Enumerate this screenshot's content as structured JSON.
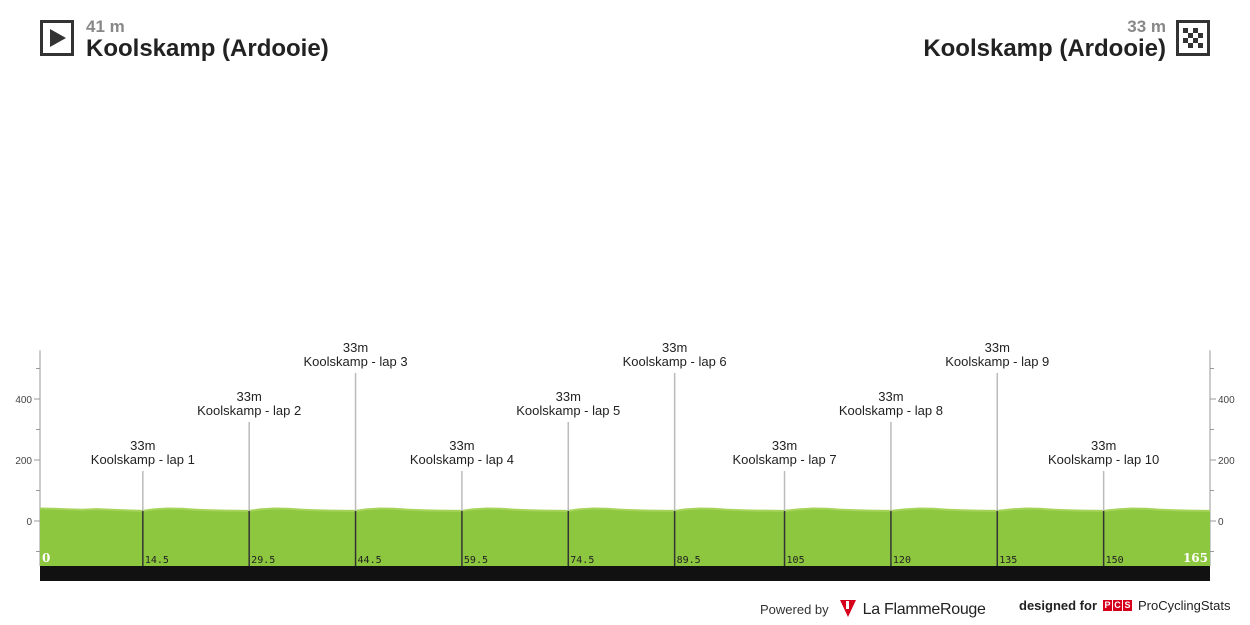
{
  "start": {
    "elevation": "41 m",
    "name": "Koolskamp (Ardooie)",
    "icon": "play-flag-icon"
  },
  "finish": {
    "elevation": "33 m",
    "name": "Koolskamp (Ardooie)",
    "icon": "checkered-flag-icon"
  },
  "chart_data": {
    "type": "area",
    "title": "",
    "xlabel": "",
    "ylabel": "",
    "xlim": [
      0,
      165
    ],
    "ylim": [
      -150,
      560
    ],
    "y_ticks": [
      0,
      200,
      400
    ],
    "x_ticks": [
      "0",
      "14.5",
      "29.5",
      "44.5",
      "59.5",
      "74.5",
      "89.5",
      "105",
      "120",
      "135",
      "150",
      "165"
    ],
    "x_tick_values": [
      0,
      14.5,
      29.5,
      44.5,
      59.5,
      74.5,
      89.5,
      105,
      120,
      135,
      150,
      165
    ],
    "colors": {
      "fill": "#8dc63f",
      "stroke": "#a6d35a",
      "base_bar": "#111111"
    },
    "elevation_profile": {
      "x": [
        0,
        2,
        4,
        6,
        8,
        10,
        12,
        14.5,
        16,
        18,
        20,
        22,
        24,
        26,
        29.5,
        31,
        33,
        35,
        37,
        39,
        41,
        44.5,
        46,
        48,
        50,
        52,
        54,
        56,
        59.5,
        61,
        63,
        65,
        67,
        69,
        71,
        74.5,
        76,
        78,
        80,
        82,
        84,
        86,
        89.5,
        91,
        93,
        95,
        97,
        99,
        101,
        105,
        107,
        109,
        111,
        113,
        115,
        117,
        120,
        122,
        124,
        126,
        128,
        130,
        132,
        135,
        137,
        139,
        141,
        143,
        145,
        147,
        150,
        152,
        154,
        156,
        158,
        160,
        162,
        165
      ],
      "y": [
        41,
        40,
        38,
        37,
        39,
        37,
        35,
        33,
        38,
        41,
        40,
        37,
        35,
        34,
        33,
        38,
        41,
        40,
        37,
        35,
        34,
        33,
        38,
        41,
        40,
        37,
        35,
        34,
        33,
        38,
        41,
        40,
        37,
        35,
        34,
        33,
        38,
        41,
        40,
        37,
        35,
        34,
        33,
        38,
        41,
        40,
        37,
        35,
        34,
        33,
        38,
        41,
        40,
        37,
        35,
        34,
        33,
        38,
        41,
        40,
        37,
        35,
        34,
        33,
        38,
        41,
        40,
        37,
        35,
        34,
        33,
        38,
        41,
        40,
        37,
        35,
        34,
        33
      ]
    },
    "waypoints": [
      {
        "km": 14.5,
        "elevation": "33m",
        "name": "Koolskamp - lap 1",
        "level": 1
      },
      {
        "km": 29.5,
        "elevation": "33m",
        "name": "Koolskamp - lap 2",
        "level": 2
      },
      {
        "km": 44.5,
        "elevation": "33m",
        "name": "Koolskamp - lap 3",
        "level": 3
      },
      {
        "km": 59.5,
        "elevation": "33m",
        "name": "Koolskamp - lap 4",
        "level": 1
      },
      {
        "km": 74.5,
        "elevation": "33m",
        "name": "Koolskamp - lap 5",
        "level": 2
      },
      {
        "km": 89.5,
        "elevation": "33m",
        "name": "Koolskamp - lap 6",
        "level": 3
      },
      {
        "km": 105,
        "elevation": "33m",
        "name": "Koolskamp - lap 7",
        "level": 1
      },
      {
        "km": 120,
        "elevation": "33m",
        "name": "Koolskamp - lap 8",
        "level": 2
      },
      {
        "km": 135,
        "elevation": "33m",
        "name": "Koolskamp - lap 9",
        "level": 3
      },
      {
        "km": 150,
        "elevation": "33m",
        "name": "Koolskamp - lap 10",
        "level": 1
      }
    ]
  },
  "footer": {
    "powered_by": "Powered by",
    "flamme_brand": "La FlammeRouge",
    "designed_for": "designed for",
    "pcs_letters": [
      "P",
      "C",
      "S"
    ],
    "pcs_brand": "ProCyclingStats"
  }
}
